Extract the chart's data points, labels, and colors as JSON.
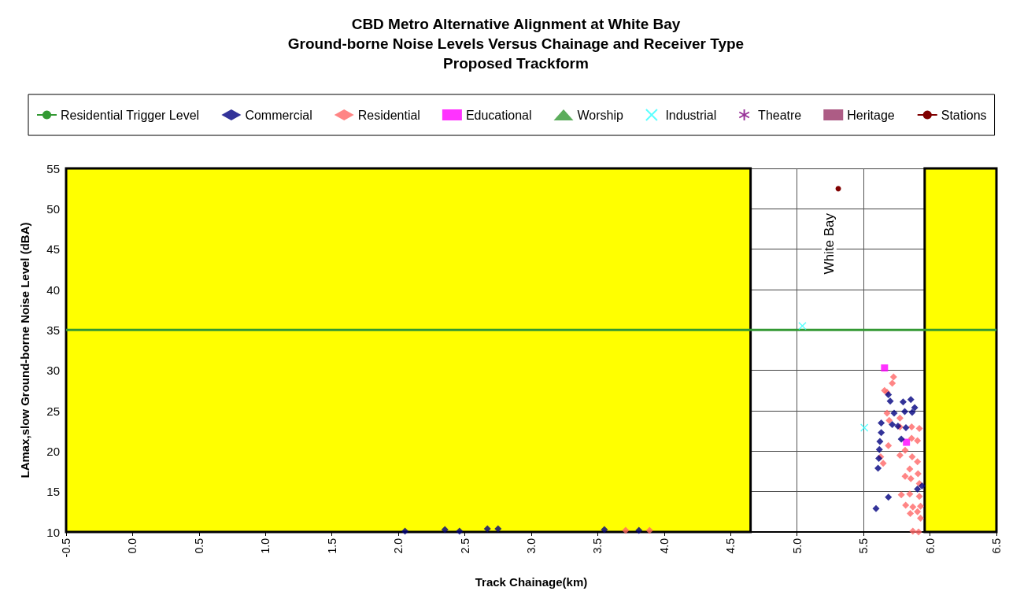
{
  "chart_data": {
    "type": "scatter",
    "title": "CBD Metro Alternative Alignment at White Bay\nGround-borne Noise Levels Versus Chainage and Receiver Type\nProposed Trackform",
    "xlabel": "Track Chainage(km)",
    "ylabel": "LAmax,slow Ground-borne Noise Level (dBA)",
    "xlim": [
      -0.5,
      6.5
    ],
    "xticks": [
      -0.5,
      {
        "value": 0,
        "label": "0.0"
      },
      0.5,
      {
        "value": 1,
        "label": "1.0"
      },
      1.5,
      {
        "value": 2,
        "label": "2.0"
      },
      2.5,
      {
        "value": 3,
        "label": "3.0"
      },
      3.5,
      {
        "value": 4,
        "label": "4.0"
      },
      4.5,
      {
        "value": 5,
        "label": "5.0"
      },
      5.5,
      {
        "value": 6,
        "label": "6.0"
      },
      6.5
    ],
    "ylim": [
      10,
      55
    ],
    "yticks": [
      10,
      15,
      20,
      25,
      30,
      35,
      40,
      45,
      50,
      55
    ],
    "grid": true,
    "legend": "top",
    "bands": [
      {
        "axis": "x",
        "from": -0.5,
        "to": 4.65,
        "color": "#ffff00"
      },
      {
        "axis": "x",
        "from": 5.96,
        "to": 6.5,
        "color": "#ffff00"
      }
    ],
    "annotations": [
      {
        "text": "White Bay",
        "x": 5.3,
        "y": 52.5
      }
    ],
    "series": [
      {
        "name": "Residential Trigger Level",
        "type": "line",
        "color": "#339933",
        "marker": "none",
        "line_style": "solid",
        "x": [
          -0.5,
          6.5
        ],
        "values": [
          35,
          35
        ]
      },
      {
        "name": "Commercial",
        "color": "#000080",
        "marker": "diamond",
        "x": [
          5.687,
          5.701,
          5.798,
          5.856,
          5.885,
          5.81,
          5.866,
          5.73,
          5.633,
          5.716,
          5.759,
          5.819,
          5.633,
          5.784,
          5.623,
          5.619,
          5.615,
          5.609,
          5.906,
          5.687,
          5.594,
          5.94,
          2.05,
          2.35,
          2.46,
          2.67,
          2.75,
          3.55,
          3.81
        ],
        "values": [
          27.0,
          26.2,
          26.1,
          26.4,
          25.4,
          24.9,
          24.8,
          24.7,
          23.5,
          23.3,
          23.1,
          22.9,
          22.3,
          21.5,
          21.2,
          20.2,
          19.1,
          17.9,
          15.3,
          14.3,
          12.9,
          15.7,
          10.1,
          10.3,
          10.1,
          10.4,
          10.4,
          10.3,
          10.2
        ]
      },
      {
        "name": "Residential",
        "color": "#ff6666",
        "marker": "diamond",
        "x": [
          5.726,
          5.716,
          5.658,
          5.677,
          5.677,
          5.774,
          5.693,
          5.862,
          5.92,
          5.774,
          5.862,
          5.906,
          5.687,
          5.774,
          5.813,
          5.866,
          5.906,
          5.629,
          5.648,
          5.848,
          5.813,
          5.856,
          5.91,
          5.92,
          5.784,
          5.848,
          5.92,
          5.817,
          5.871,
          5.929,
          5.852,
          5.906,
          5.929,
          5.871,
          5.914,
          3.71,
          3.89
        ],
        "values": [
          29.2,
          28.4,
          27.5,
          27.3,
          24.7,
          24.1,
          23.8,
          23.0,
          22.8,
          23.0,
          21.6,
          21.3,
          20.7,
          19.5,
          20.1,
          19.3,
          18.7,
          19.3,
          18.5,
          17.8,
          16.9,
          16.6,
          17.2,
          16.0,
          14.6,
          14.7,
          14.4,
          13.3,
          13.1,
          13.2,
          12.3,
          12.5,
          11.7,
          10.1,
          10.0,
          10.2,
          10.2
        ]
      },
      {
        "name": "Educational",
        "color": "#ff00ff",
        "marker": "square",
        "x": [
          5.658,
          5.823
        ],
        "values": [
          30.3,
          21.1
        ]
      },
      {
        "name": "Worship",
        "color": "#339933",
        "marker": "triangle"
      },
      {
        "name": "Industrial",
        "color": "#33ffff",
        "marker": "cross",
        "x": [
          5.04,
          5.506
        ],
        "values": [
          35.5,
          22.9
        ]
      },
      {
        "name": "Theatre",
        "color": "#800080",
        "marker": "star"
      },
      {
        "name": "Heritage",
        "color": "#993366",
        "marker": "square"
      },
      {
        "name": "Stations",
        "type": "line",
        "color": "#800000",
        "marker": "circle",
        "line_style": "solid",
        "x": [
          5.31
        ],
        "values": [
          52.5
        ]
      }
    ]
  }
}
